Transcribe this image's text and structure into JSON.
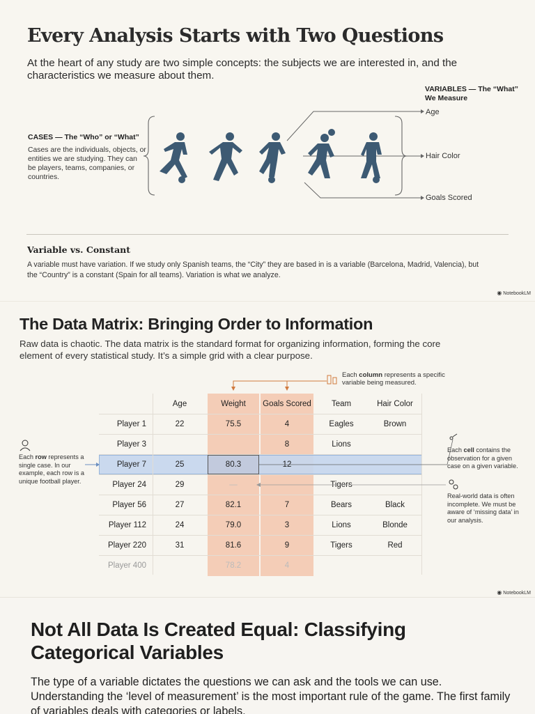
{
  "panel1": {
    "title": "Every Analysis Starts with Two Questions",
    "subtitle": "At the heart of any study are two simple concepts: the subjects we are interested in, and the characteristics we measure about them.",
    "cases_heading": "CASES — The “Who” or “What”",
    "cases_text": "Cases are the individuals, objects, or entities we are studying. They can be players, teams, companies, or countries.",
    "variables_heading": "VARIABLES — The “What” We Measure",
    "variables": [
      "Age",
      "Hair Color",
      "Goals Scored"
    ],
    "constant_heading": "Variable vs. Constant",
    "constant_text": "A variable must have variation. If we study only Spanish teams, the “City” they are based in is a variable (Barcelona, Madrid, Valencia), but the “Country” is a constant (Spain for all teams). Variation is what we analyze.",
    "brand": "NotebookLM",
    "player_icon": "football-player-icon",
    "player_color": "#3d5a73"
  },
  "panel2": {
    "title": "The Data Matrix: Bringing Order to Information",
    "subtitle": "Raw data is chaotic. The data matrix is the standard format for organizing information, forming the core element of every statistical study. It’s a simple grid with a clear purpose.",
    "column_note_pre": "Each ",
    "column_note_bold": "column",
    "column_note_post": " represents a specific variable being measured.",
    "row_note_pre": "Each ",
    "row_note_bold": "row",
    "row_note_post": " represents a single case. In our example, each row is a unique football player.",
    "cell_note_pre": "Each ",
    "cell_note_bold": "cell",
    "cell_note_post": " contains the observation for a given case on a given variable.",
    "missing_note": "Real-world data is often incomplete. We must be aware of ‘missing data’ in our analysis.",
    "headers": [
      "Age",
      "Weight",
      "Goals Scored",
      "Team",
      "Hair Color"
    ],
    "rows": [
      [
        "Player 1",
        "22",
        "75.5",
        "4",
        "Eagles",
        "Brown"
      ],
      [
        "Player 3",
        "",
        "",
        "8",
        "Lions",
        ""
      ],
      [
        "Player 7",
        "25",
        "80.3",
        "12",
        "",
        ""
      ],
      [
        "Player 24",
        "29",
        "—",
        "",
        "Tigers",
        ""
      ],
      [
        "Player 56",
        "27",
        "82.1",
        "7",
        "Bears",
        "Black"
      ],
      [
        "Player 112",
        "24",
        "79.0",
        "3",
        "Lions",
        "Blonde"
      ],
      [
        "Player 220",
        "31",
        "81.6",
        "9",
        "Tigers",
        "Red"
      ],
      [
        "Player 400",
        "",
        "78.2",
        "4",
        "",
        ""
      ]
    ],
    "highlight_column_color": "#f3c9b0",
    "highlight_row_color": "#c7d7ee",
    "brand": "NotebookLM"
  },
  "panel3": {
    "title": "Not All Data Is Created Equal: Classifying Categorical Variables",
    "subtitle": "The type of a variable dictates the questions we can ask and the tools we can use. Understanding the ‘level of measurement’ is the most important rule of the game. The first family of variables deals with categories or labels."
  }
}
